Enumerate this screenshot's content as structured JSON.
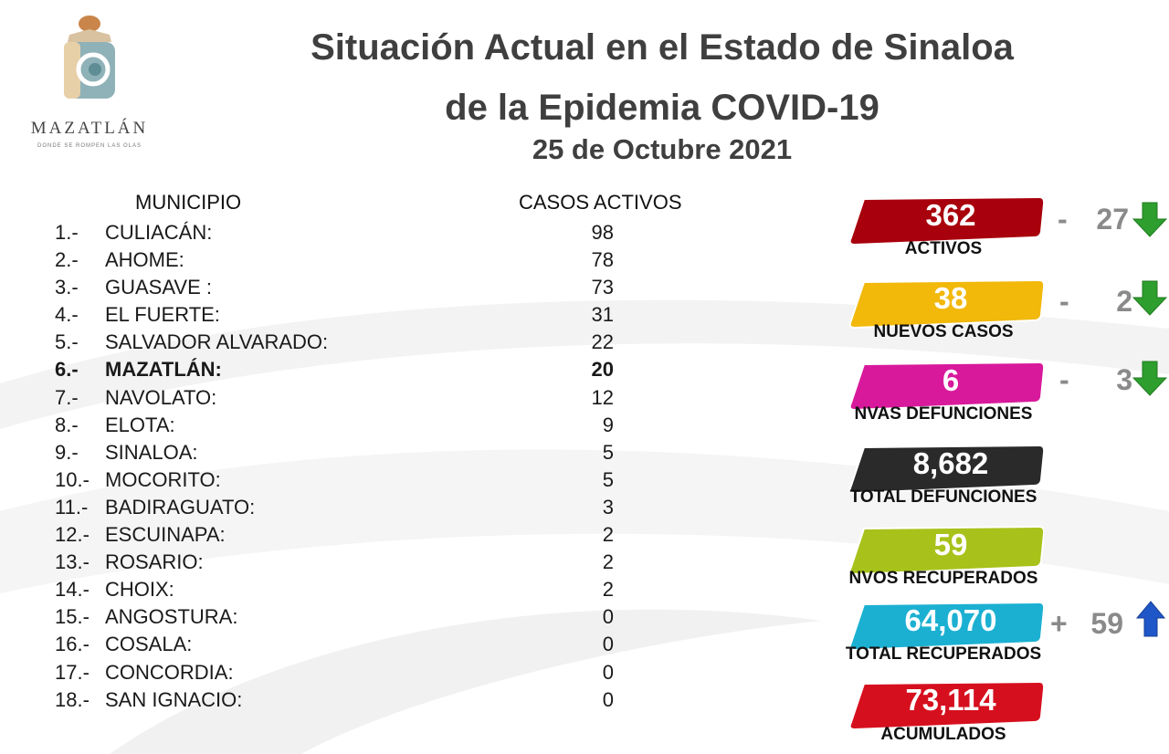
{
  "logo": {
    "name": "MAZATLÁN",
    "tagline": "DONDE SE ROMPEN LAS OLAS"
  },
  "title": {
    "line1": "Situación Actual en el Estado de Sinaloa",
    "line2": "de la Epidemia COVID-19",
    "date": "25 de Octubre 2021"
  },
  "table": {
    "headers": {
      "municipio": "MUNICIPIO",
      "casos": "CASOS ACTIVOS"
    },
    "rows": [
      {
        "num": "1.-",
        "name": "CULIACÁN:",
        "value": "98"
      },
      {
        "num": "2.-",
        "name": "AHOME:",
        "value": "78"
      },
      {
        "num": "3.-",
        "name": "GUASAVE :",
        "value": "73"
      },
      {
        "num": "4.-",
        "name": "EL FUERTE:",
        "value": "31"
      },
      {
        "num": "5.-",
        "name": "SALVADOR ALVARADO:",
        "value": "22"
      },
      {
        "num": "6.-",
        "name": "MAZATLÁN:",
        "value": "20"
      },
      {
        "num": "7.-",
        "name": "NAVOLATO:",
        "value": "12"
      },
      {
        "num": "8.-",
        "name": "ELOTA:",
        "value": "9"
      },
      {
        "num": "9.-",
        "name": "SINALOA:",
        "value": "5"
      },
      {
        "num": "10.-",
        "name": "MOCORITO:",
        "value": "5"
      },
      {
        "num": "11.-",
        "name": "BADIRAGUATO:",
        "value": "3"
      },
      {
        "num": "12.-",
        "name": "ESCUINAPA:",
        "value": "2"
      },
      {
        "num": "13.-",
        "name": "ROSARIO:",
        "value": "2"
      },
      {
        "num": "14.-",
        "name": "CHOIX:",
        "value": "2"
      },
      {
        "num": "15.-",
        "name": "ANGOSTURA:",
        "value": "0"
      },
      {
        "num": "16.-",
        "name": "COSALA:",
        "value": "0"
      },
      {
        "num": "17.-",
        "name": "CONCORDIA:",
        "value": "0"
      },
      {
        "num": "18.-",
        "name": "SAN IGNACIO:",
        "value": "0"
      }
    ]
  },
  "stats": {
    "activos": {
      "value": "362",
      "label": "ACTIVOS",
      "color": "#a8000c",
      "delta_sign": "-",
      "delta": "27",
      "trend": "down"
    },
    "nuevos_casos": {
      "value": "38",
      "label": "NUEVOS CASOS",
      "color": "#f2b80a",
      "delta_sign": "-",
      "delta": "2",
      "trend": "down"
    },
    "nvas_defunciones": {
      "value": "6",
      "label": "NVAS DEFUNCIONES",
      "color": "#d8199b",
      "delta_sign": "-",
      "delta": "3",
      "trend": "down"
    },
    "total_defunciones": {
      "value": "8,682",
      "label": "TOTAL DEFUNCIONES",
      "color": "#2a2a2a"
    },
    "nvos_recuperados": {
      "value": "59",
      "label": "NVOS RECUPERADOS",
      "color": "#a8c21b"
    },
    "total_recuperados": {
      "value": "64,070",
      "label": "TOTAL RECUPERADOS",
      "color": "#1bb0d2",
      "delta_sign": "+",
      "delta": "59",
      "trend": "up"
    },
    "acumulados": {
      "value": "73,114",
      "label": "ACUMULADOS",
      "color": "#d60f1e"
    }
  },
  "colors": {
    "title": "#3f3f3f",
    "down_arrow": "#2e9e2e",
    "up_arrow": "#1f56c8",
    "delta": "#8a8a8a"
  }
}
